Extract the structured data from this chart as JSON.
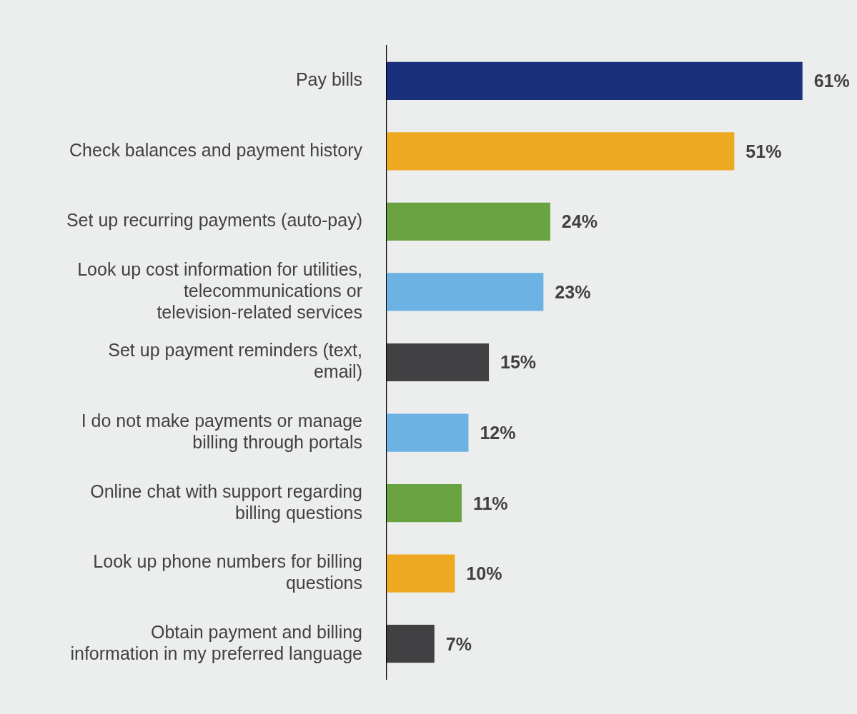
{
  "chart_data": {
    "type": "bar",
    "orientation": "horizontal",
    "categories": [
      "Pay bills",
      "Check balances and payment history",
      "Set up recurring payments (auto-pay)",
      "Look up cost information for utilities, telecommunications or television-related services",
      "Set up payment reminders (text, email)",
      "I do not make payments or manage billing through portals",
      "Online chat with support regarding billing questions",
      "Look up phone numbers for billing questions",
      "Obtain payment and billing information in my preferred language"
    ],
    "values": [
      61,
      51,
      24,
      23,
      15,
      12,
      11,
      10,
      7
    ],
    "colors": [
      "#1b307c",
      "#eda921",
      "#6aa442",
      "#6cb3e3",
      "#414042",
      "#6cb3e3",
      "#6aa442",
      "#eda921",
      "#414042"
    ],
    "value_labels": [
      "61%",
      "51%",
      "24%",
      "23%",
      "15%",
      "12%",
      "11%",
      "10%",
      "7%"
    ],
    "xlim": [
      0,
      69
    ],
    "tick_labels": "y",
    "grid": false,
    "legend": false
  }
}
